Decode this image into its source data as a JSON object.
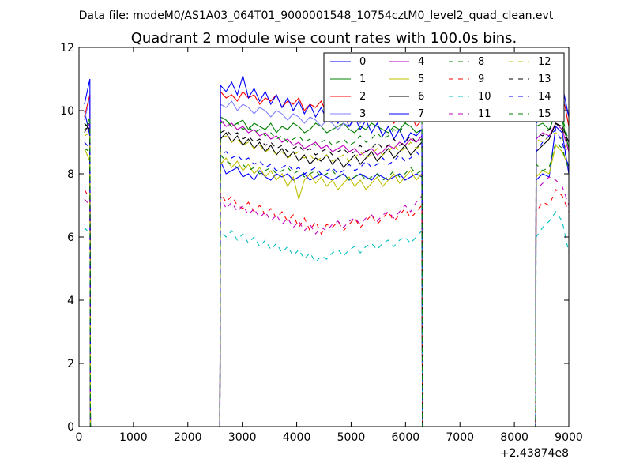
{
  "header": {
    "data_file_label": "Data file: modeM0/AS1A03_064T01_9000001548_10754cztM0_level2_quad_clean.evt"
  },
  "chart_data": {
    "type": "line",
    "title": "Quadrant 2 module wise count rates with 100.0s bins.",
    "xlabel": "",
    "ylabel": "",
    "xlim": [
      0,
      9000
    ],
    "ylim": [
      0,
      12
    ],
    "x_offset_label": "+2.43874e8",
    "grid": false,
    "legend_position": "top-right",
    "legend_columns": 4,
    "x_ticks": [
      0,
      1000,
      2000,
      3000,
      4000,
      5000,
      6000,
      7000,
      8000,
      9000
    ],
    "y_ticks": [
      0,
      2,
      4,
      6,
      8,
      10,
      12
    ],
    "segments": [
      {
        "start": 100,
        "end": 200
      },
      {
        "start": 2600,
        "end": 6300
      },
      {
        "start": 8400,
        "end": 9000
      }
    ],
    "series": [
      {
        "name": "0",
        "color": "#0000ff",
        "dash": "solid",
        "values": [
          10.0,
          9.2,
          8.4,
          8.0,
          8.1,
          8.2,
          7.9,
          8.0,
          7.8,
          8.1,
          7.9,
          7.8,
          8.0,
          7.9,
          8.0,
          7.8,
          7.9,
          8.0,
          7.8,
          7.9,
          8.0,
          7.9,
          7.8,
          7.9,
          8.0,
          7.8,
          7.9,
          8.0,
          7.9,
          7.8,
          8.0,
          7.9,
          7.8,
          7.9,
          8.0,
          7.8,
          7.9,
          8.0,
          7.9,
          7.8,
          8.0,
          7.9,
          9.5,
          9.3,
          8.0
        ]
      },
      {
        "name": "1",
        "color": "#008000",
        "dash": "solid",
        "values": [
          9.5,
          9.6,
          9.8,
          9.7,
          9.5,
          9.6,
          9.7,
          9.4,
          9.6,
          9.5,
          9.4,
          9.6,
          9.3,
          9.5,
          9.4,
          9.6,
          9.5,
          9.3,
          9.4,
          9.6,
          9.5,
          9.3,
          9.4,
          9.5,
          9.6,
          9.4,
          9.3,
          9.5,
          9.4,
          9.6,
          9.5,
          9.4,
          9.3,
          9.5,
          9.4,
          9.6,
          9.5,
          9.3,
          9.4,
          9.5,
          9.6,
          9.4,
          9.9,
          9.7,
          8.8
        ]
      },
      {
        "name": "2",
        "color": "#ff0000",
        "dash": "solid",
        "values": [
          9.8,
          10.5,
          10.6,
          10.4,
          10.5,
          10.3,
          10.6,
          10.4,
          10.5,
          10.2,
          10.4,
          10.3,
          10.5,
          10.1,
          10.3,
          10.2,
          10.4,
          10.0,
          10.2,
          10.1,
          10.3,
          9.9,
          10.1,
          10.0,
          10.2,
          9.8,
          10.0,
          9.9,
          10.1,
          9.7,
          9.9,
          9.8,
          10.0,
          9.6,
          9.8,
          9.7,
          9.9,
          9.5,
          9.7,
          9.8,
          9.9,
          10.0,
          10.8,
          10.6,
          9.5
        ]
      },
      {
        "name": "3",
        "color": "#8080ff",
        "dash": "solid",
        "values": [
          9.7,
          10.4,
          10.2,
          10.1,
          10.3,
          10.0,
          10.2,
          10.1,
          9.9,
          10.1,
          10.0,
          9.8,
          10.0,
          9.9,
          9.7,
          9.9,
          9.8,
          9.6,
          9.8,
          9.7,
          9.5,
          9.7,
          9.6,
          9.4,
          9.6,
          9.5,
          9.7,
          9.6,
          9.8,
          9.7,
          9.9,
          9.8,
          10.0,
          9.9,
          10.1,
          10.0,
          10.2,
          10.3,
          10.4,
          10.2,
          10.5,
          10.6,
          11.0,
          10.5,
          9.8
        ]
      },
      {
        "name": "4",
        "color": "#bf00bf",
        "dash": "solid",
        "values": [
          9.3,
          9.6,
          9.7,
          9.5,
          9.6,
          9.4,
          9.5,
          9.3,
          9.4,
          9.2,
          9.3,
          9.1,
          9.2,
          9.0,
          9.1,
          8.9,
          9.0,
          8.8,
          8.9,
          9.0,
          8.8,
          8.9,
          8.7,
          8.8,
          8.9,
          8.7,
          8.8,
          8.6,
          8.7,
          8.8,
          8.6,
          8.7,
          8.9,
          8.8,
          9.0,
          8.9,
          9.1,
          9.0,
          9.2,
          9.1,
          9.3,
          9.2,
          9.6,
          9.4,
          8.7
        ]
      },
      {
        "name": "5",
        "color": "#bfbf00",
        "dash": "solid",
        "values": [
          8.8,
          8.4,
          8.3,
          8.5,
          8.2,
          8.4,
          8.1,
          8.3,
          8.0,
          8.2,
          7.9,
          8.1,
          7.8,
          8.0,
          7.6,
          7.9,
          7.2,
          7.8,
          8.0,
          7.7,
          7.9,
          7.6,
          7.8,
          7.5,
          7.7,
          7.9,
          7.6,
          7.8,
          7.5,
          7.7,
          7.9,
          7.6,
          7.8,
          8.0,
          7.7,
          7.9,
          8.1,
          7.8,
          8.0,
          7.9,
          8.1,
          8.0,
          8.9,
          8.7,
          8.2
        ]
      },
      {
        "name": "6",
        "color": "#000000",
        "dash": "solid",
        "values": [
          9.6,
          9.4,
          9.1,
          9.3,
          9.0,
          9.2,
          8.9,
          9.1,
          8.8,
          9.0,
          8.7,
          8.9,
          8.6,
          8.8,
          8.5,
          8.7,
          8.4,
          8.6,
          8.3,
          8.5,
          8.4,
          8.6,
          8.3,
          8.5,
          8.2,
          8.4,
          8.6,
          8.3,
          8.5,
          8.7,
          8.4,
          8.6,
          8.8,
          8.5,
          8.7,
          8.9,
          8.6,
          8.8,
          9.0,
          8.7,
          8.9,
          9.1,
          9.6,
          9.5,
          9.0
        ]
      },
      {
        "name": "7",
        "color": "#0000ff",
        "dash": "solid",
        "values": [
          10.2,
          11.0,
          10.8,
          10.6,
          10.9,
          10.5,
          11.1,
          10.4,
          10.7,
          10.3,
          10.6,
          10.2,
          10.5,
          10.1,
          10.4,
          10.0,
          10.3,
          9.9,
          10.2,
          9.8,
          10.1,
          9.7,
          10.0,
          9.6,
          9.9,
          9.5,
          9.8,
          9.4,
          9.7,
          9.3,
          9.6,
          9.2,
          9.5,
          9.1,
          9.4,
          9.0,
          9.3,
          9.2,
          9.4,
          9.6,
          9.8,
          10.0,
          11.5,
          10.8,
          9.8
        ]
      },
      {
        "name": "8",
        "color": "#008000",
        "dash": "dashed",
        "values": [
          8.8,
          8.7,
          8.6,
          8.4,
          8.3,
          8.2,
          8.3,
          8.1,
          8.2,
          8.0,
          8.1,
          8.2,
          8.0,
          8.1,
          8.2,
          8.0,
          8.1,
          7.9,
          8.0,
          8.1,
          7.9,
          8.0,
          8.1,
          7.9,
          8.0,
          7.8,
          7.9,
          8.0,
          7.8,
          7.9,
          8.0,
          7.8,
          7.9,
          8.1,
          7.9,
          8.0,
          8.2,
          8.0,
          8.1,
          8.3,
          8.1,
          8.2,
          9.0,
          8.8,
          8.1
        ]
      },
      {
        "name": "9",
        "color": "#ff0000",
        "dash": "dashed",
        "values": [
          7.5,
          7.2,
          7.4,
          7.1,
          7.3,
          7.0,
          6.9,
          7.1,
          6.8,
          7.0,
          6.7,
          6.9,
          6.6,
          6.8,
          6.5,
          6.7,
          6.3,
          6.6,
          6.2,
          6.5,
          6.1,
          6.4,
          6.3,
          6.5,
          6.2,
          6.4,
          6.6,
          6.3,
          6.5,
          6.7,
          6.4,
          6.6,
          6.8,
          6.5,
          6.7,
          6.9,
          6.6,
          6.8,
          7.0,
          6.8,
          7.1,
          7.0,
          7.5,
          7.3,
          6.8
        ]
      },
      {
        "name": "10",
        "color": "#00bfbf",
        "dash": "dashed",
        "values": [
          6.3,
          6.1,
          6.2,
          6.0,
          6.2,
          5.9,
          6.1,
          5.8,
          6.0,
          5.7,
          5.9,
          5.6,
          5.8,
          5.5,
          5.7,
          5.4,
          5.6,
          5.3,
          5.5,
          5.2,
          5.4,
          5.3,
          5.5,
          5.6,
          5.4,
          5.6,
          5.7,
          5.5,
          5.7,
          5.8,
          5.6,
          5.8,
          5.9,
          5.7,
          5.9,
          6.0,
          5.8,
          6.0,
          6.2,
          6.0,
          6.3,
          6.5,
          6.8,
          6.5,
          5.5
        ]
      },
      {
        "name": "11",
        "color": "#bf00bf",
        "dash": "dashed",
        "values": [
          7.2,
          7.0,
          7.3,
          6.9,
          7.1,
          6.8,
          7.0,
          6.7,
          6.9,
          6.6,
          6.8,
          6.5,
          6.7,
          6.4,
          6.6,
          6.3,
          6.5,
          6.2,
          6.4,
          6.1,
          6.3,
          6.2,
          6.4,
          6.5,
          6.3,
          6.5,
          6.6,
          6.4,
          6.6,
          6.7,
          6.5,
          6.7,
          6.8,
          6.6,
          6.8,
          7.0,
          6.8,
          7.1,
          7.3,
          7.5,
          7.7,
          7.9,
          7.8,
          7.6,
          7.0
        ]
      },
      {
        "name": "12",
        "color": "#bfbf00",
        "dash": "dashed",
        "values": [
          9.2,
          9.3,
          9.1,
          9.2,
          9.0,
          9.1,
          8.9,
          9.0,
          8.8,
          8.9,
          8.7,
          8.8,
          8.6,
          8.7,
          8.5,
          8.6,
          8.7,
          8.5,
          8.6,
          8.4,
          8.5,
          8.6,
          8.4,
          8.5,
          8.6,
          8.4,
          8.5,
          8.7,
          8.5,
          8.6,
          8.8,
          8.6,
          8.7,
          8.9,
          8.7,
          8.8,
          9.0,
          8.8,
          8.9,
          9.1,
          9.0,
          9.2,
          9.3,
          9.1,
          8.6
        ]
      },
      {
        "name": "13",
        "color": "#000000",
        "dash": "dashed",
        "values": [
          9.4,
          9.5,
          9.3,
          9.4,
          9.2,
          9.3,
          9.1,
          9.2,
          9.0,
          9.1,
          8.9,
          9.0,
          8.8,
          8.9,
          8.7,
          8.8,
          8.9,
          8.7,
          8.8,
          8.6,
          8.7,
          8.8,
          8.6,
          8.7,
          8.8,
          8.6,
          8.7,
          8.9,
          8.7,
          8.8,
          9.0,
          8.8,
          8.9,
          9.1,
          8.9,
          9.0,
          9.2,
          9.0,
          9.1,
          9.3,
          9.2,
          9.4,
          9.6,
          9.4,
          8.9
        ]
      },
      {
        "name": "14",
        "color": "#0000ff",
        "dash": "dashed",
        "values": [
          9.0,
          8.8,
          8.6,
          8.7,
          8.5,
          8.6,
          8.4,
          8.5,
          8.3,
          8.4,
          8.2,
          8.3,
          8.1,
          8.2,
          8.3,
          8.1,
          8.2,
          8.0,
          8.1,
          8.2,
          8.0,
          8.1,
          8.2,
          8.0,
          8.1,
          8.3,
          8.1,
          8.2,
          8.4,
          8.2,
          8.3,
          8.5,
          8.3,
          8.4,
          8.6,
          8.4,
          8.5,
          8.7,
          8.5,
          8.7,
          9.0,
          9.2,
          9.4,
          9.0,
          8.2
        ]
      },
      {
        "name": "15",
        "color": "#008000",
        "dash": "dashed",
        "values": [
          9.3,
          9.8,
          9.6,
          9.7,
          9.5,
          9.6,
          9.4,
          9.5,
          9.3,
          9.4,
          9.2,
          9.3,
          9.1,
          9.2,
          9.0,
          9.1,
          9.2,
          9.0,
          9.1,
          8.9,
          9.0,
          9.1,
          8.9,
          9.0,
          9.1,
          8.9,
          9.0,
          9.2,
          9.0,
          9.1,
          9.3,
          9.1,
          9.2,
          9.4,
          9.3,
          9.6,
          9.8,
          10.0,
          10.3,
          10.6,
          10.9,
          11.1,
          10.2,
          9.8,
          9.0
        ]
      }
    ]
  }
}
